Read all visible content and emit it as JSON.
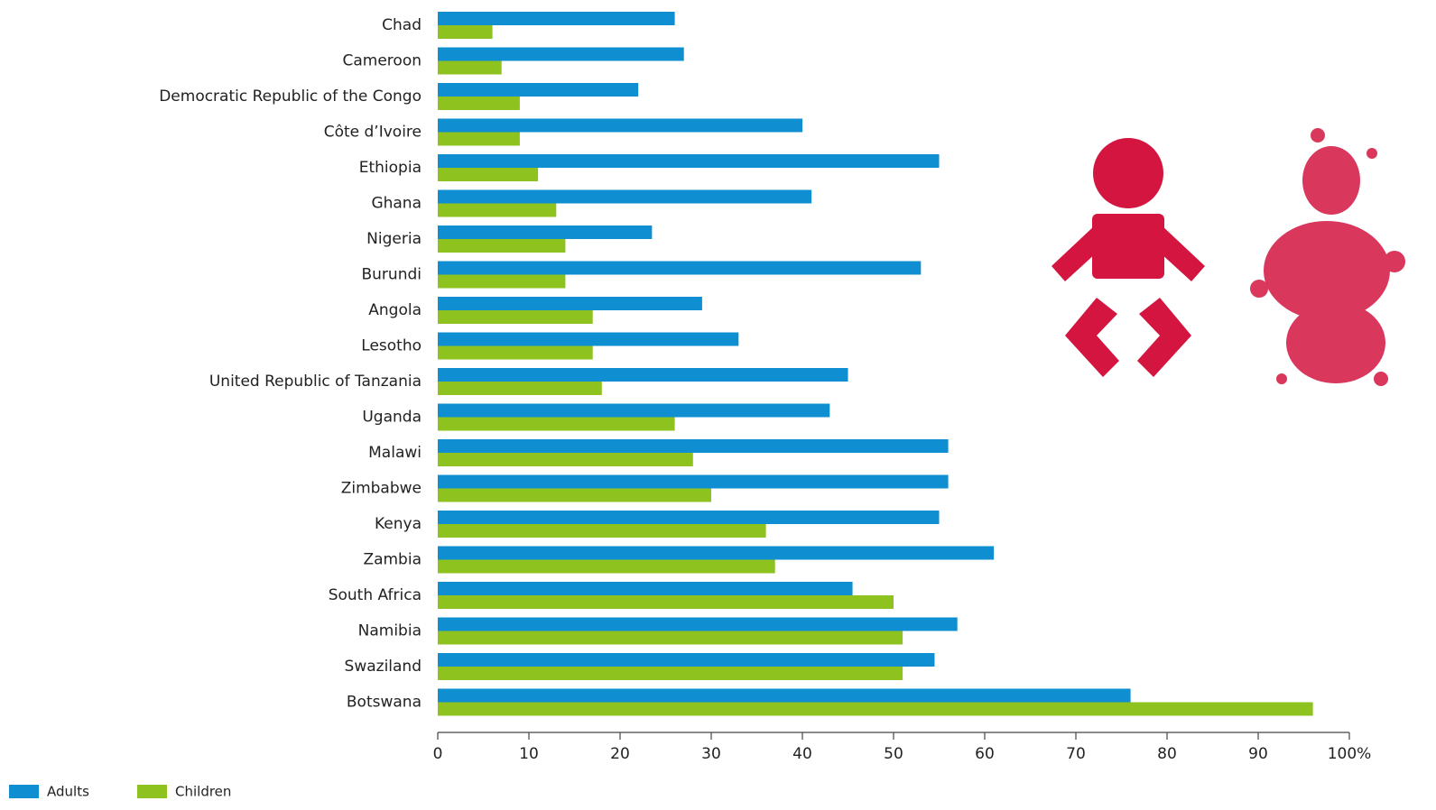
{
  "chart_data": {
    "type": "hbar",
    "categories": [
      "Chad",
      "Cameroon",
      "Democratic Republic of the Congo",
      "Côte d’Ivoire",
      "Ethiopia",
      "Ghana",
      "Nigeria",
      "Burundi",
      "Angola",
      "Lesotho",
      "United Republic of Tanzania",
      "Uganda",
      "Malawi",
      "Zimbabwe",
      "Kenya",
      "Zambia",
      "South Africa",
      "Namibia",
      "Swaziland",
      "Botswana"
    ],
    "series": [
      {
        "name": "Adults",
        "color": "#0f8fd1",
        "values": [
          26,
          27,
          22,
          40,
          55,
          41,
          23.5,
          53,
          29,
          33,
          45,
          43,
          56,
          56,
          55,
          61,
          45.5,
          57,
          54.5,
          76
        ]
      },
      {
        "name": "Children",
        "color": "#8dc21f",
        "values": [
          6,
          7,
          9,
          9,
          11,
          13,
          14,
          14,
          17,
          17,
          18,
          26,
          28,
          30,
          36,
          37,
          50,
          51,
          51,
          96
        ]
      }
    ],
    "xlim": [
      0,
      100
    ],
    "xticks": [
      0,
      10,
      20,
      30,
      40,
      50,
      60,
      70,
      80,
      90,
      {
        "value": 100,
        "label": "100%"
      }
    ],
    "legend": "bottom-left"
  }
}
